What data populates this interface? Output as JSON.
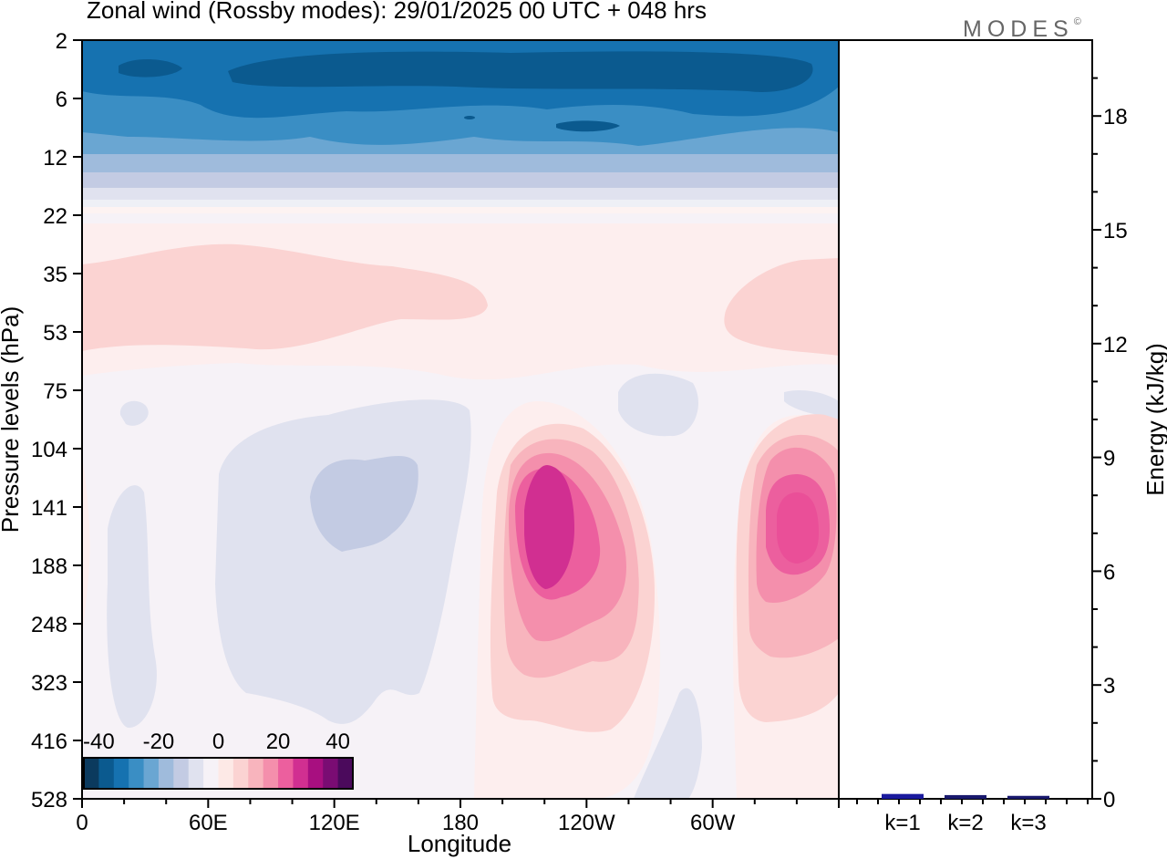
{
  "title": "Zonal wind (Rossby modes):  29/01/2025  00 UTC  + 048 hrs",
  "logo": "MODES",
  "logo_mark": "©",
  "chart_data": [
    {
      "type": "heatmap",
      "xlabel": "Longitude",
      "ylabel": "Pressure levels (hPa)",
      "x_tick_labels": [
        "0",
        "60E",
        "120E",
        "180",
        "120W",
        "60W"
      ],
      "y_tick_labels": [
        "2",
        "6",
        "12",
        "22",
        "35",
        "53",
        "75",
        "104",
        "141",
        "188",
        "248",
        "323",
        "416",
        "528"
      ],
      "colorbar": {
        "tick_labels": [
          "-40",
          "-20",
          "0",
          "20",
          "40"
        ],
        "levels": [
          -40,
          -35,
          -30,
          -25,
          -20,
          -15,
          -10,
          -5,
          0,
          5,
          10,
          15,
          20,
          25,
          30,
          35,
          40
        ],
        "colors": [
          "#0b3a5e",
          "#0b5a8f",
          "#1672b0",
          "#3a8ec4",
          "#6aa6d2",
          "#9fbbdc",
          "#c3cbe3",
          "#e0e2ef",
          "#f6f2f7",
          "#fde9e6",
          "#fbd3d2",
          "#f8b4bd",
          "#f48fac",
          "#ec5f9e",
          "#d12f91",
          "#a80f80",
          "#7a0c73",
          "#4b0a5c"
        ]
      },
      "description_features": [
        {
          "kind": "stratospheric easterlies",
          "lon_range": [
            0,
            360
          ],
          "p_range": [
            2,
            14
          ],
          "min_value": -40
        },
        {
          "kind": "westerly band",
          "lon_range": [
            0,
            160
          ],
          "p_range": [
            30,
            60
          ],
          "value": 10
        },
        {
          "kind": "westerly band",
          "lon_range": [
            305,
            360
          ],
          "p_range": [
            30,
            60
          ],
          "value": 10
        },
        {
          "kind": "jet maximum",
          "center_lon": 240,
          "center_p": 165,
          "max_value": 35
        },
        {
          "kind": "jet maximum",
          "center_lon": 335,
          "center_p": 165,
          "max_value": 30
        },
        {
          "kind": "easterly region",
          "center_lon": 140,
          "center_p": 150,
          "min_value": -10
        }
      ]
    },
    {
      "type": "bar",
      "ylabel": "Energy (kJ/kg)",
      "categories": [
        "k=1",
        "k=2",
        "k=3"
      ],
      "values": [
        0.08,
        0.05,
        0.03
      ],
      "ylim": [
        0,
        20
      ],
      "y_tick_labels": [
        "0",
        "3",
        "6",
        "9",
        "12",
        "15",
        "18"
      ],
      "colors": [
        "#1a1a9e",
        "#1a1a6e",
        "#1a1a6e"
      ]
    }
  ]
}
